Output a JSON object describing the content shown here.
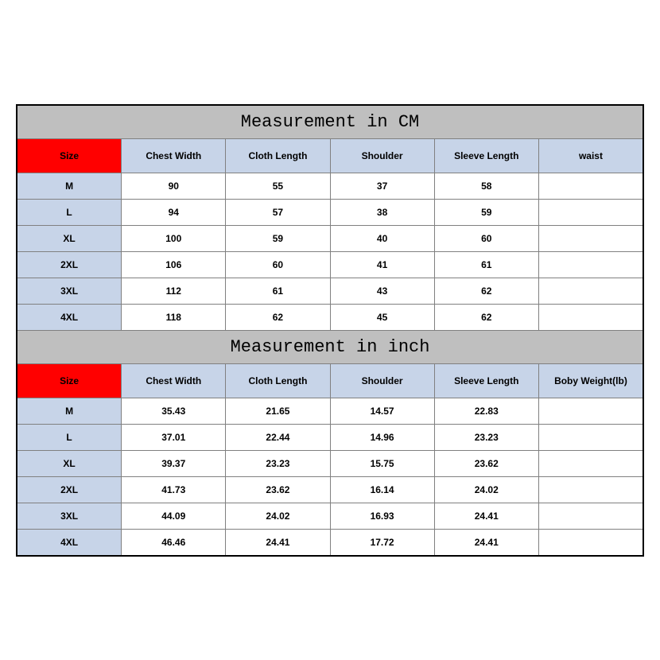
{
  "tables": [
    {
      "title": "Measurement in CM",
      "title_bg": "#bfbfbf",
      "title_font_family": "Courier New, monospace",
      "title_fontsize": 22,
      "columns": [
        {
          "label": "Size",
          "bg": "#ff0000"
        },
        {
          "label": "Chest Width",
          "bg": "#c7d4e8"
        },
        {
          "label": "Cloth Length",
          "bg": "#c7d4e8"
        },
        {
          "label": "Shoulder",
          "bg": "#c7d4e8"
        },
        {
          "label": "Sleeve Length",
          "bg": "#c7d4e8"
        },
        {
          "label": "waist",
          "bg": "#c7d4e8"
        }
      ],
      "header_fontsize": 12,
      "header_fontweight": "bold",
      "first_col_bg": "#c7d4e8",
      "data_bg": "#ffffff",
      "data_fontsize": 12,
      "data_fontweight": "bold",
      "border_color": "#808080",
      "rows": [
        [
          "M",
          "90",
          "55",
          "37",
          "58",
          ""
        ],
        [
          "L",
          "94",
          "57",
          "38",
          "59",
          ""
        ],
        [
          "XL",
          "100",
          "59",
          "40",
          "60",
          ""
        ],
        [
          "2XL",
          "106",
          "60",
          "41",
          "61",
          ""
        ],
        [
          "3XL",
          "112",
          "61",
          "43",
          "62",
          ""
        ],
        [
          "4XL",
          "118",
          "62",
          "45",
          "62",
          ""
        ]
      ]
    },
    {
      "title": "Measurement in inch",
      "title_bg": "#bfbfbf",
      "title_font_family": "Courier New, monospace",
      "title_fontsize": 22,
      "columns": [
        {
          "label": "Size",
          "bg": "#ff0000"
        },
        {
          "label": "Chest Width",
          "bg": "#c7d4e8"
        },
        {
          "label": "Cloth Length",
          "bg": "#c7d4e8"
        },
        {
          "label": "Shoulder",
          "bg": "#c7d4e8"
        },
        {
          "label": "Sleeve Length",
          "bg": "#c7d4e8"
        },
        {
          "label": "Boby Weight(lb)",
          "bg": "#c7d4e8"
        }
      ],
      "header_fontsize": 12,
      "header_fontweight": "bold",
      "first_col_bg": "#c7d4e8",
      "data_bg": "#ffffff",
      "data_fontsize": 12,
      "data_fontweight": "bold",
      "border_color": "#808080",
      "rows": [
        [
          "M",
          "35.43",
          "21.65",
          "14.57",
          "22.83",
          ""
        ],
        [
          "L",
          "37.01",
          "22.44",
          "14.96",
          "23.23",
          ""
        ],
        [
          "XL",
          "39.37",
          "23.23",
          "15.75",
          "23.62",
          ""
        ],
        [
          "2XL",
          "41.73",
          "23.62",
          "16.14",
          "24.02",
          ""
        ],
        [
          "3XL",
          "44.09",
          "24.02",
          "16.93",
          "24.41",
          ""
        ],
        [
          "4XL",
          "46.46",
          "24.41",
          "17.72",
          "24.41",
          ""
        ]
      ]
    }
  ],
  "outer_border_color": "#000000",
  "outer_border_width": 2
}
